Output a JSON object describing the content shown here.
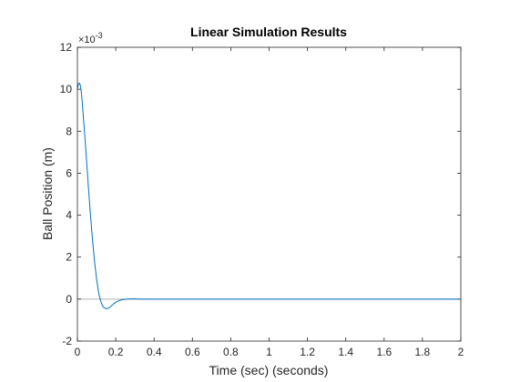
{
  "chart_data": {
    "type": "line",
    "title": "Linear Simulation Results",
    "xlabel": "Time (sec) (seconds)",
    "ylabel": "Ball Position (m)",
    "y_exponent_base": "×10",
    "y_exponent_power": "-3",
    "xlim": [
      0,
      2
    ],
    "ylim": [
      -2,
      12
    ],
    "x_ticks": [
      "0",
      "0.2",
      "0.4",
      "0.6",
      "0.8",
      "1",
      "1.2",
      "1.4",
      "1.6",
      "1.8",
      "2"
    ],
    "y_ticks": [
      "-2",
      "0",
      "2",
      "4",
      "6",
      "8",
      "10",
      "12"
    ],
    "grid": false,
    "reference_line_y": 0,
    "colors": {
      "line": "#0072bd",
      "zero_line": "#b0b0b0",
      "axes": "#262626"
    },
    "series": [
      {
        "x": [
          0,
          0.005,
          0.01,
          0.015,
          0.02,
          0.025,
          0.03,
          0.04,
          0.05,
          0.06,
          0.07,
          0.08,
          0.09,
          0.1,
          0.11,
          0.12,
          0.13,
          0.14,
          0.15,
          0.16,
          0.17,
          0.18,
          0.19,
          0.2,
          0.21,
          0.22,
          0.24,
          0.26,
          0.28,
          0.3,
          0.32,
          0.35,
          0.4,
          0.5,
          0.6,
          0.8,
          1.0,
          1.2,
          1.4,
          1.6,
          1.8,
          2.0
        ],
        "y": [
          10.0,
          10.25,
          10.3,
          10.2,
          9.9,
          9.4,
          8.8,
          7.6,
          6.3,
          5.0,
          3.8,
          2.7,
          1.75,
          0.95,
          0.35,
          -0.05,
          -0.3,
          -0.42,
          -0.46,
          -0.44,
          -0.38,
          -0.3,
          -0.22,
          -0.15,
          -0.1,
          -0.06,
          -0.02,
          0.0,
          0.01,
          0.01,
          0.0,
          0.0,
          0.0,
          0.0,
          0.0,
          0.0,
          0.0,
          0.0,
          0.0,
          0.0,
          0.0,
          0.0
        ]
      }
    ]
  }
}
